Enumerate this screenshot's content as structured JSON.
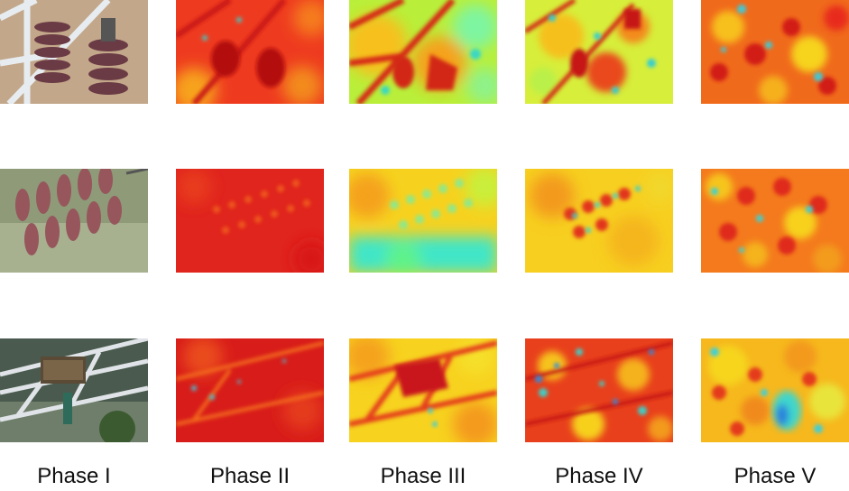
{
  "phases": [
    {
      "label": "Phase I"
    },
    {
      "label": "Phase II"
    },
    {
      "label": "Phase III"
    },
    {
      "label": "Phase IV"
    },
    {
      "label": "Phase V"
    }
  ],
  "rows": [
    {
      "subject": "insulator-string-with-tower"
    },
    {
      "subject": "insulator-string-on-grass"
    },
    {
      "subject": "bird-nest-on-tower"
    }
  ],
  "colors": {
    "heat_red": "#e41f1f",
    "heat_orange": "#f36c1b",
    "heat_yellow": "#f7e61f",
    "heat_cyan": "#36d6c8",
    "heat_green": "#5ef27a",
    "steel": "#d8dde2",
    "insulator": "#8c4a52"
  }
}
